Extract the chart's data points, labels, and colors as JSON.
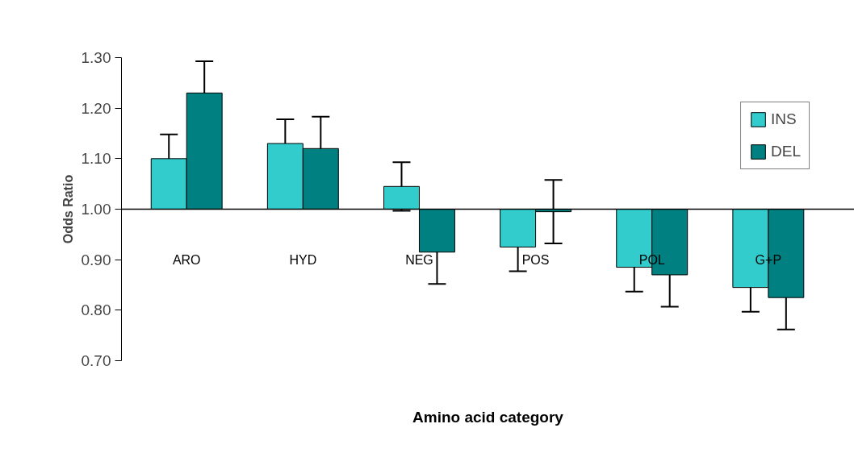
{
  "chart_data": {
    "type": "bar",
    "xlabel": "Amino acid category",
    "ylabel": "Odds Ratio",
    "categories": [
      "ARO",
      "HYD",
      "NEG",
      "POS",
      "POL",
      "G+P"
    ],
    "series": [
      {
        "name": "INS",
        "color": "#33cccc",
        "base": [
          1,
          1,
          1,
          1,
          1,
          1
        ],
        "values": [
          0.1,
          0.13,
          0.045,
          -0.075,
          -0.115,
          -0.155
        ],
        "errors": [
          0.048,
          0.048,
          0.048,
          0.048,
          0.048,
          0.048
        ]
      },
      {
        "name": "DEL",
        "color": "#008080",
        "base": [
          1,
          1,
          1,
          1,
          1,
          1
        ],
        "values": [
          0.23,
          0.12,
          -0.085,
          -0.005,
          -0.13,
          -0.175
        ],
        "errors": [
          0.063,
          0.063,
          0.063,
          0.063,
          0.063,
          0.063
        ]
      }
    ],
    "ylim": [
      0.7,
      1.3
    ],
    "yticks": [
      {
        "value": 0.7,
        "label": "0.70"
      },
      {
        "value": 0.8,
        "label": "0.80"
      },
      {
        "value": 0.9,
        "label": "0.90"
      },
      {
        "value": 1.0,
        "label": "1.00"
      },
      {
        "value": 1.1,
        "label": "1.10"
      },
      {
        "value": 1.2,
        "label": "1.20"
      },
      {
        "value": 1.3,
        "label": "1.30"
      }
    ],
    "ref_lines": [
      {
        "axis": "y",
        "value": 1.0,
        "color": "#000000"
      }
    ],
    "grid": false,
    "legend": "top right"
  }
}
